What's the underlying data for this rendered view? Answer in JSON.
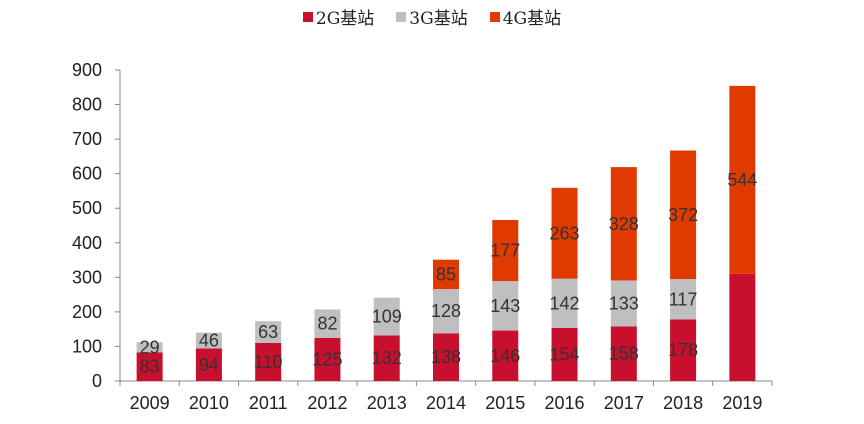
{
  "legend": [
    {
      "name": "2G基站",
      "color": "#C8102E"
    },
    {
      "name": "3G基站",
      "color": "#BFBFBF"
    },
    {
      "name": "4G基站",
      "color": "#E03A00"
    }
  ],
  "chart_data": {
    "type": "bar",
    "stacked": true,
    "title": "",
    "xlabel": "",
    "ylabel": "",
    "categories": [
      "2009",
      "2010",
      "2011",
      "2012",
      "2013",
      "2014",
      "2015",
      "2016",
      "2017",
      "2018",
      "2019"
    ],
    "series": [
      {
        "name": "2G基站",
        "color": "#C8102E",
        "values": [
          83,
          94,
          110,
          125,
          132,
          138,
          146,
          154,
          158,
          178,
          310
        ]
      },
      {
        "name": "3G基站",
        "color": "#BFBFBF",
        "values": [
          29,
          46,
          63,
          82,
          109,
          128,
          143,
          142,
          133,
          117,
          0
        ]
      },
      {
        "name": "4G基站",
        "color": "#E03A00",
        "values": [
          0,
          0,
          0,
          0,
          0,
          85,
          177,
          263,
          328,
          372,
          544
        ]
      }
    ],
    "labels": [
      [
        "83",
        "94",
        "110",
        "125",
        "132",
        "138",
        "146",
        "154",
        "158",
        "178",
        ""
      ],
      [
        "29",
        "46",
        "63",
        "82",
        "109",
        "128",
        "143",
        "142",
        "133",
        "117",
        ""
      ],
      [
        "",
        "",
        "",
        "",
        "",
        "85",
        "177",
        "263",
        "328",
        "372",
        "544"
      ]
    ],
    "ylim": [
      0,
      900
    ],
    "yticks": [
      0,
      100,
      200,
      300,
      400,
      500,
      600,
      700,
      800,
      900
    ],
    "grid": false,
    "legend_position": "top-center"
  }
}
